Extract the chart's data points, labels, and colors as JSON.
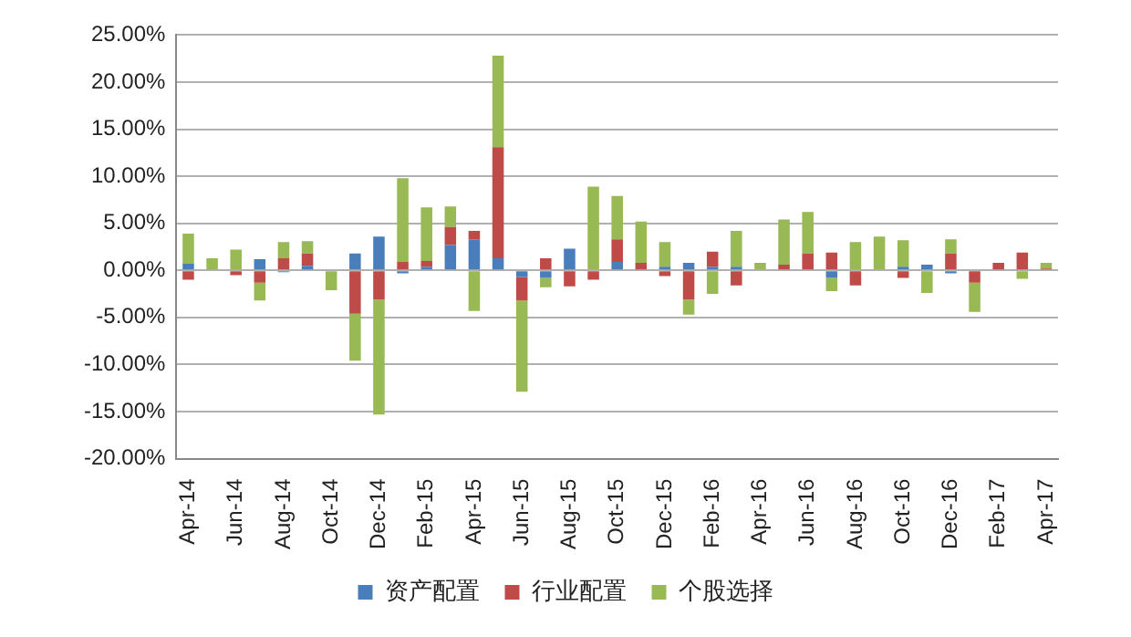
{
  "chart_data": {
    "type": "bar",
    "stacked": true,
    "grid": "y",
    "legend": "bottom",
    "categories": [
      "Apr-14",
      null,
      "Jun-14",
      null,
      "Aug-14",
      null,
      "Oct-14",
      null,
      "Dec-14",
      null,
      "Feb-15",
      null,
      "Apr-15",
      null,
      "Jun-15",
      null,
      "Aug-15",
      null,
      "Oct-15",
      null,
      "Dec-15",
      null,
      "Feb-16",
      null,
      "Apr-16",
      null,
      "Jun-16",
      null,
      "Aug-16",
      null,
      "Oct-16",
      null,
      "Dec-16",
      null,
      "Feb-17",
      null,
      "Apr-17"
    ],
    "series": [
      {
        "name": "资产配置",
        "color": "#4a7ebb",
        "values": [
          0.7,
          0,
          0,
          1.2,
          -0.2,
          0.5,
          0,
          1.8,
          3.6,
          -0.3,
          0.4,
          2.7,
          3.3,
          1.3,
          -0.7,
          -0.8,
          2.3,
          0,
          0.9,
          0,
          0.4,
          0.8,
          0.4,
          0.4,
          0,
          0,
          0,
          -0.8,
          0,
          0,
          0.4,
          0.6,
          -0.3,
          0,
          0,
          0,
          0
        ]
      },
      {
        "name": "行业配置",
        "color": "#be4b48",
        "values": [
          -1.0,
          0,
          -0.5,
          -1.3,
          1.3,
          1.3,
          0,
          -4.6,
          -3.1,
          0.9,
          0.6,
          1.9,
          0.9,
          11.8,
          -2.5,
          1.3,
          -1.7,
          -1.0,
          2.4,
          0.8,
          -0.6,
          -3.1,
          1.6,
          -1.6,
          0,
          0.6,
          1.8,
          1.9,
          -1.6,
          0,
          -0.8,
          0,
          1.8,
          -1.3,
          0.8,
          1.9,
          0.2
        ]
      },
      {
        "name": "个股选择",
        "color": "#98b954",
        "values": [
          3.2,
          1.3,
          2.2,
          -1.9,
          1.7,
          1.3,
          -2.1,
          -5.0,
          -12.2,
          8.9,
          5.7,
          2.2,
          -4.3,
          9.7,
          -9.7,
          -1.0,
          0,
          8.9,
          4.6,
          4.4,
          2.6,
          -1.6,
          -2.5,
          3.8,
          0.8,
          4.8,
          4.4,
          -1.4,
          3.0,
          3.6,
          2.8,
          -2.4,
          1.5,
          -3.1,
          0,
          -0.9,
          0.6
        ]
      }
    ],
    "ylim": [
      -20,
      25
    ],
    "yticks": [
      {
        "value": -20,
        "label": "-20.00%"
      },
      {
        "value": -15,
        "label": "-15.00%"
      },
      {
        "value": -10,
        "label": "-10.00%"
      },
      {
        "value": -5,
        "label": "-5.00%"
      },
      {
        "value": 0,
        "label": "0.00%"
      },
      {
        "value": 5,
        "label": "5.00%"
      },
      {
        "value": 10,
        "label": "10.00%"
      },
      {
        "value": 15,
        "label": "15.00%"
      },
      {
        "value": 20,
        "label": "20.00%"
      },
      {
        "value": 25,
        "label": "25.00%"
      }
    ]
  }
}
